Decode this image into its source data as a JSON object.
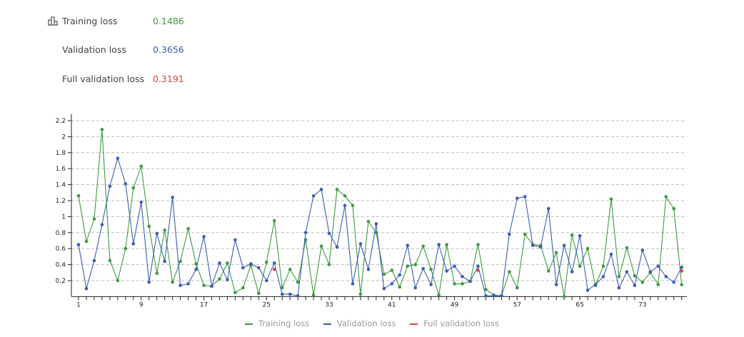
{
  "summary": {
    "items": [
      {
        "label": "Training loss",
        "value": "0.1486",
        "color": "#3f9b3f"
      },
      {
        "label": "Validation loss",
        "value": "0.3656",
        "color": "#3a5fb8"
      },
      {
        "label": "Full validation loss",
        "value": "0.3191",
        "color": "#d9453b"
      }
    ],
    "icon": "bar-chart-icon"
  },
  "chart_data": {
    "type": "line",
    "x": [
      1,
      2,
      3,
      4,
      5,
      6,
      7,
      8,
      9,
      10,
      11,
      12,
      13,
      14,
      15,
      16,
      17,
      18,
      19,
      20,
      21,
      22,
      23,
      24,
      25,
      26,
      27,
      28,
      29,
      30,
      31,
      32,
      33,
      34,
      35,
      36,
      37,
      38,
      39,
      40,
      41,
      42,
      43,
      44,
      45,
      46,
      47,
      48,
      49,
      50,
      51,
      52,
      53,
      54,
      55,
      56,
      57,
      58,
      59,
      60,
      61,
      62,
      63,
      64,
      65,
      66,
      67,
      68,
      69,
      70,
      71,
      72,
      73,
      74,
      75,
      76,
      77,
      78
    ],
    "xticks": [
      1,
      9,
      17,
      25,
      33,
      41,
      49,
      57,
      65,
      73
    ],
    "yticks": [
      0.2,
      0.4,
      0.6,
      0.8,
      1,
      1.2,
      1.4,
      1.6,
      1.8,
      2,
      2.2
    ],
    "ytick_labels": [
      "0.2",
      "0.4",
      "0.6",
      "0.8",
      "1",
      "1.2",
      "1.4",
      "1.6",
      "1.8",
      "2",
      "2.2"
    ],
    "ylim": [
      0,
      2.2
    ],
    "grid": "horizontal dashed",
    "legend_placement": "bottom",
    "series": [
      {
        "name": "Training loss",
        "color": "#3f9b3f",
        "values": [
          1.26,
          0.69,
          0.97,
          2.09,
          0.45,
          0.2,
          0.6,
          1.36,
          1.63,
          0.88,
          0.29,
          0.83,
          0.18,
          0.44,
          0.85,
          0.41,
          0.14,
          0.13,
          0.22,
          0.42,
          0.05,
          0.11,
          0.39,
          0.04,
          0.43,
          0.95,
          0.11,
          0.34,
          0.18,
          0.71,
          0.02,
          0.63,
          0.4,
          1.34,
          1.26,
          1.14,
          0.03,
          0.94,
          0.8,
          0.28,
          0.33,
          0.12,
          0.38,
          0.4,
          0.63,
          0.34,
          0.02,
          0.65,
          0.16,
          0.16,
          0.19,
          0.65,
          0.09,
          0.02,
          0.01,
          0.31,
          0.11,
          0.78,
          0.65,
          0.64,
          0.32,
          0.55,
          0.0,
          0.77,
          0.38,
          0.6,
          0.14,
          0.38,
          1.22,
          0.25,
          0.61,
          0.26,
          0.18,
          0.3,
          0.15,
          1.25,
          1.1,
          0.1486
        ]
      },
      {
        "name": "Validation loss",
        "color": "#3a5fb8",
        "values": [
          0.65,
          0.1,
          0.45,
          0.9,
          1.38,
          1.73,
          1.41,
          0.66,
          1.18,
          0.18,
          0.79,
          0.44,
          1.24,
          0.14,
          0.16,
          0.34,
          0.75,
          0.13,
          0.42,
          0.21,
          0.71,
          0.36,
          0.41,
          0.36,
          0.2,
          0.42,
          0.03,
          0.03,
          0.01,
          0.8,
          1.26,
          1.34,
          0.79,
          0.62,
          1.14,
          0.16,
          0.66,
          0.34,
          0.91,
          0.1,
          0.16,
          0.27,
          0.64,
          0.11,
          0.35,
          0.15,
          0.65,
          0.32,
          0.38,
          0.25,
          0.19,
          0.38,
          0.01,
          0.01,
          0.01,
          0.78,
          1.23,
          1.25,
          0.64,
          0.62,
          1.1,
          0.15,
          0.64,
          0.31,
          0.76,
          0.08,
          0.15,
          0.25,
          0.53,
          0.11,
          0.31,
          0.14,
          0.58,
          0.31,
          0.38,
          0.25,
          0.18,
          0.3656
        ]
      },
      {
        "name": "Full validation loss",
        "color": "#d9453b",
        "points": [
          [
            26,
            0.34
          ],
          [
            52,
            0.33
          ],
          [
            78,
            0.3191
          ]
        ]
      }
    ]
  }
}
